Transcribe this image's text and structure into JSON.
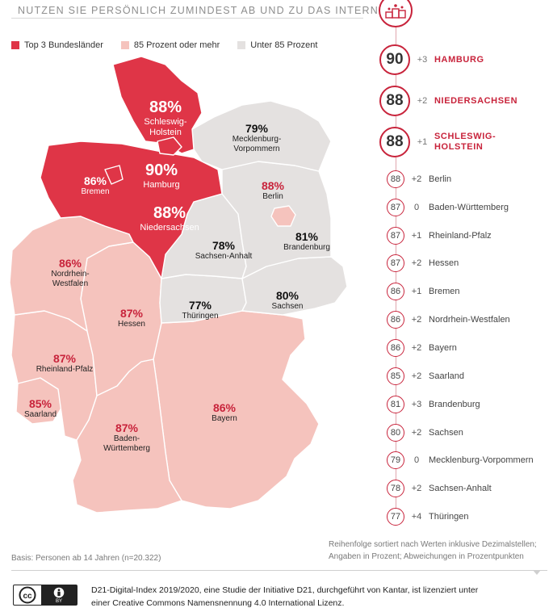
{
  "question": "NUTZEN SIE PERSÖNLICH ZUMINDEST AB UND ZU DAS INTERNET?",
  "colors": {
    "top3": "#df3547",
    "high": "#f5c3bd",
    "low": "#e4e1e0",
    "accent": "#c8233b"
  },
  "legend": [
    {
      "label": "Top 3 Bundesländer",
      "color": "#df3547"
    },
    {
      "label": "85 Prozent oder mehr",
      "color": "#f5c3bd"
    },
    {
      "label": "Unter 85 Prozent",
      "color": "#e4e1e0"
    }
  ],
  "regions": {
    "sh": {
      "value": "88%",
      "name": "Schleswig-",
      "name2": "Holstein"
    },
    "mv": {
      "value": "79%",
      "name": "Mecklenburg-",
      "name2": "Vorpommern"
    },
    "hb": {
      "value": "86%",
      "name": "Bremen"
    },
    "hh": {
      "value": "90%",
      "name": "Hamburg"
    },
    "be": {
      "value": "88%",
      "name": "Berlin"
    },
    "ni": {
      "value": "88%",
      "name": "Niedersachsen"
    },
    "st": {
      "value": "78%",
      "name": "Sachsen-Anhalt"
    },
    "bb": {
      "value": "81%",
      "name": "Brandenburg"
    },
    "nw": {
      "value": "86%",
      "name": "Nordrhein-",
      "name2": "Westfalen"
    },
    "sn": {
      "value": "80%",
      "name": "Sachsen"
    },
    "he": {
      "value": "87%",
      "name": "Hessen"
    },
    "th": {
      "value": "77%",
      "name": "Thüringen"
    },
    "rp": {
      "value": "87%",
      "name": "Rheinland-Pfalz"
    },
    "sl": {
      "value": "85%",
      "name": "Saarland"
    },
    "by": {
      "value": "86%",
      "name": "Bayern"
    },
    "bw": {
      "value": "87%",
      "name": "Baden-",
      "name2": "Württemberg"
    }
  },
  "ranking": [
    {
      "value": "90",
      "diff": "+3",
      "name": "HAMBURG",
      "top": true
    },
    {
      "value": "88",
      "diff": "+2",
      "name": "NIEDERSACHSEN",
      "top": true
    },
    {
      "value": "88",
      "diff": "+1",
      "name": "SCHLESWIG-",
      "name2": "HOLSTEIN",
      "top": true
    },
    {
      "value": "88",
      "diff": "+2",
      "name": "Berlin"
    },
    {
      "value": "87",
      "diff": "0",
      "name": "Baden-Württemberg"
    },
    {
      "value": "87",
      "diff": "+1",
      "name": "Rheinland-Pfalz"
    },
    {
      "value": "87",
      "diff": "+2",
      "name": "Hessen"
    },
    {
      "value": "86",
      "diff": "+1",
      "name": "Bremen"
    },
    {
      "value": "86",
      "diff": "+2",
      "name": "Nordrhein-Westfalen"
    },
    {
      "value": "86",
      "diff": "+2",
      "name": "Bayern"
    },
    {
      "value": "85",
      "diff": "+2",
      "name": "Saarland"
    },
    {
      "value": "81",
      "diff": "+3",
      "name": "Brandenburg"
    },
    {
      "value": "80",
      "diff": "+2",
      "name": "Sachsen"
    },
    {
      "value": "79",
      "diff": "0",
      "name": "Mecklenburg-Vorpommern"
    },
    {
      "value": "78",
      "diff": "+2",
      "name": "Sachsen-Anhalt"
    },
    {
      "value": "77",
      "diff": "+4",
      "name": "Thüringen"
    }
  ],
  "note_line1": "Reihenfolge sortiert nach Werten inklusive Dezimalstellen;",
  "note_line2": "Angaben in Prozent; Abweichungen in Prozentpunkten",
  "basis": "Basis: Personen ab 14 Jahren (n=20.322)",
  "license_line1": "D21-Digital-Index 2019/2020, eine Studie der Initiative D21, durchgeführt von Kantar, ist lizenziert unter",
  "license_line2": "einer Creative Commons Namensnennung 4.0 International Lizenz.",
  "cc_by": "BY",
  "icons": {
    "top": "podium-icon",
    "cc": "cc-icon",
    "by": "person-icon"
  }
}
